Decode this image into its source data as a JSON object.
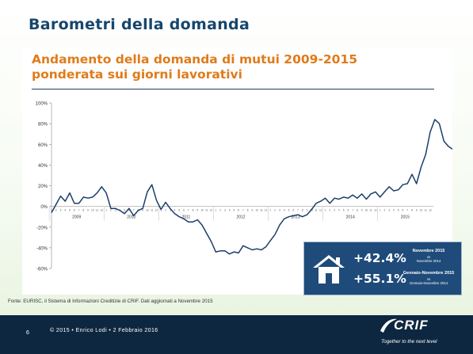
{
  "slide_title": "Barometri della domanda",
  "chart_data": {
    "type": "line",
    "title_lines": [
      "Andamento della domanda di mutui 2009-2015",
      "ponderata sui giorni lavorativi"
    ],
    "ylim": [
      -60,
      100
    ],
    "yticks": [
      "100%",
      "80%",
      "60%",
      "40%",
      "20%",
      "0%",
      "-20%",
      "-40%",
      "-60%"
    ],
    "ytick_values": [
      100,
      80,
      60,
      40,
      20,
      0,
      -20,
      -40,
      -60
    ],
    "years": [
      "2009",
      "2010",
      "2011",
      "2012",
      "2013",
      "2014",
      "2015"
    ],
    "month_labels": [
      "1",
      "2",
      "3",
      "4",
      "5",
      "6",
      "7",
      "8",
      "9",
      "10",
      "11",
      "12"
    ],
    "color": "#1b3e6a",
    "series": [
      {
        "values": [
          -6,
          2,
          10,
          5,
          13,
          3,
          3,
          9,
          8,
          9,
          13,
          19,
          13,
          -2,
          -2,
          -4,
          -7,
          -2,
          -9,
          -4,
          -2,
          14,
          21,
          6,
          -3,
          4,
          -2,
          -7,
          -10,
          -12,
          -15,
          -15,
          -13,
          -18,
          -26,
          -34,
          -44,
          -43,
          -43,
          -46,
          -44,
          -45,
          -38,
          -40,
          -42,
          -41,
          -42,
          -39,
          -33,
          -27,
          -18,
          -12,
          -10,
          -9,
          -8,
          -10,
          -8,
          -3,
          3,
          5,
          8,
          3,
          8,
          7,
          9,
          8,
          11,
          8,
          12,
          7,
          12,
          14,
          9,
          14,
          19,
          15,
          16,
          21,
          22,
          31,
          22,
          38,
          50,
          72,
          84,
          80,
          63,
          58,
          55,
          43,
          42
        ]
      }
    ]
  },
  "info_box": {
    "value1": "+42.4%",
    "label1": "Novembre 2015",
    "vs1a": "vs",
    "vs1b": "Novembre 2014",
    "value2": "+55.1%",
    "label2": "Gennaio-Novembre 2015",
    "vs2a": "vs",
    "vs2b": "Gennaio-Novembre 2014"
  },
  "source": "Fonte: EURISC, il Sistema di Informazioni Creditizie di CRIF. Dati aggiornati a Novembre 2015",
  "footer": {
    "page_number": "6",
    "copyright": "© 2015 • Enrico Lodi • 2 Febbraio 2016",
    "logo": "CRIF",
    "tagline": "Together to the next level"
  }
}
